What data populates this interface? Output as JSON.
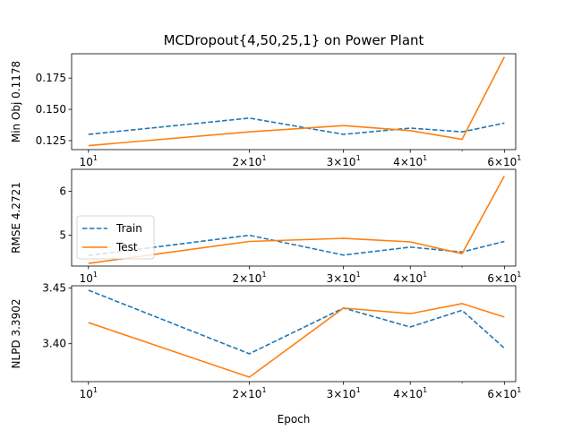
{
  "chart_data": [
    {
      "type": "line",
      "title": "MCDropout{4,50,25,1} on Power Plant",
      "xlabel": "",
      "ylabel": "Min Obj 0.1178",
      "xscale": "log",
      "x": [
        10,
        20,
        30,
        40,
        50,
        60
      ],
      "xticks": [
        {
          "value": 10,
          "base": "10",
          "exp": "1"
        },
        {
          "value": 20,
          "base": "2×10",
          "exp": "1"
        },
        {
          "value": 30,
          "base": "3×10",
          "exp": "1"
        },
        {
          "value": 40,
          "base": "4×10",
          "exp": "1"
        },
        {
          "value": 60,
          "base": "6×10",
          "exp": "1"
        }
      ],
      "ylim": [
        0.1178,
        0.1945
      ],
      "yticks": [
        "0.125",
        "0.150",
        "0.175"
      ],
      "series": [
        {
          "name": "Train",
          "color": "#1f77b4",
          "dash": "dashed",
          "values": [
            0.13,
            0.143,
            0.13,
            0.135,
            0.132,
            0.139
          ]
        },
        {
          "name": "Test",
          "color": "#ff7f0e",
          "dash": "solid",
          "values": [
            0.121,
            0.132,
            0.137,
            0.133,
            0.126,
            0.192
          ]
        }
      ]
    },
    {
      "type": "line",
      "title": "",
      "xlabel": "",
      "ylabel": "RMSE 4.2721",
      "xscale": "log",
      "x": [
        10,
        20,
        30,
        40,
        50,
        60
      ],
      "xticks": [
        {
          "value": 10,
          "base": "10",
          "exp": "1"
        },
        {
          "value": 20,
          "base": "2×10",
          "exp": "1"
        },
        {
          "value": 30,
          "base": "3×10",
          "exp": "1"
        },
        {
          "value": 40,
          "base": "4×10",
          "exp": "1"
        },
        {
          "value": 60,
          "base": "6×10",
          "exp": "1"
        }
      ],
      "ylim": [
        4.3,
        6.5
      ],
      "yticks": [
        "5",
        "6"
      ],
      "legend": {
        "position": "center-left",
        "entries": [
          "Train",
          "Test"
        ]
      },
      "series": [
        {
          "name": "Train",
          "color": "#1f77b4",
          "dash": "dashed",
          "values": [
            4.54,
            5.0,
            4.55,
            4.73,
            4.62,
            4.86
          ]
        },
        {
          "name": "Test",
          "color": "#ff7f0e",
          "dash": "solid",
          "values": [
            4.36,
            4.86,
            4.93,
            4.85,
            4.58,
            6.35
          ]
        }
      ]
    },
    {
      "type": "line",
      "title": "",
      "xlabel": "Epoch",
      "ylabel": "NLPD 3.3902",
      "xscale": "log",
      "x": [
        10,
        20,
        30,
        40,
        50,
        60
      ],
      "xticks": [
        {
          "value": 10,
          "base": "10",
          "exp": "1"
        },
        {
          "value": 20,
          "base": "2×10",
          "exp": "1"
        },
        {
          "value": 30,
          "base": "3×10",
          "exp": "1"
        },
        {
          "value": 40,
          "base": "4×10",
          "exp": "1"
        },
        {
          "value": 60,
          "base": "6×10",
          "exp": "1"
        }
      ],
      "ylim": [
        3.366,
        3.452
      ],
      "yticks": [
        "3.40",
        "3.45"
      ],
      "series": [
        {
          "name": "Train",
          "color": "#1f77b4",
          "dash": "dashed",
          "values": [
            3.448,
            3.391,
            3.432,
            3.415,
            3.43,
            3.396
          ]
        },
        {
          "name": "Test",
          "color": "#ff7f0e",
          "dash": "solid",
          "values": [
            3.419,
            3.37,
            3.432,
            3.427,
            3.436,
            3.424
          ]
        }
      ]
    }
  ]
}
